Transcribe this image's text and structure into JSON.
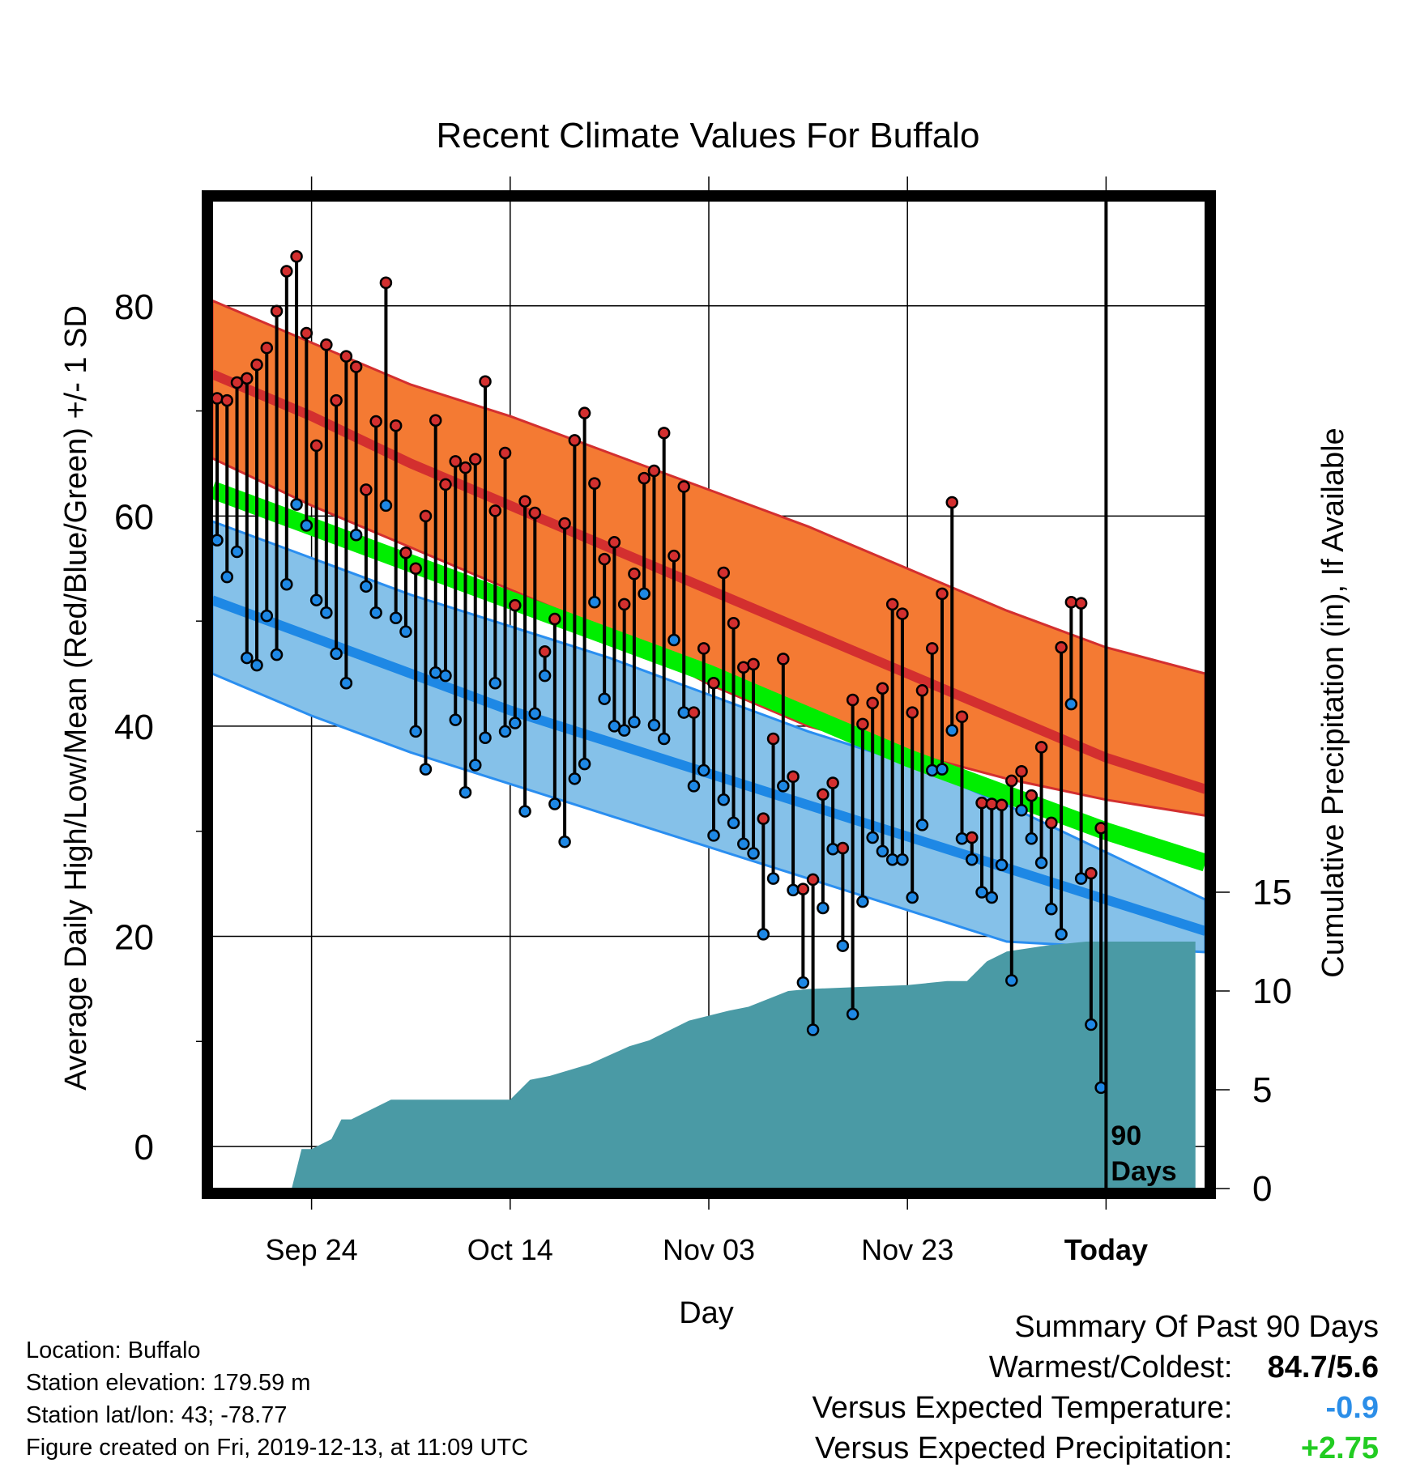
{
  "chart_data": {
    "type": "line",
    "title": "Recent Climate Values For Buffalo",
    "xlabel": "Day",
    "ylabel": "Average Daily High/Low/Mean (Red/Blue/Green) +/- 1 SD",
    "y2label": "Cumulative Precipitation (in), If Available",
    "x_tick_labels": [
      "Sep 24",
      "Oct 14",
      "Nov 03",
      "Nov 23",
      "Today"
    ],
    "x_tick_days": [
      10,
      30,
      50,
      70,
      90
    ],
    "xlim": [
      0,
      100
    ],
    "ylim": [
      -4,
      90
    ],
    "y_ticks": [
      0,
      20,
      40,
      60,
      80
    ],
    "y2lim": [
      0,
      50
    ],
    "y2_ticks": [
      0,
      5,
      10,
      15
    ],
    "today_marker": {
      "day": 90,
      "label": "90 Days"
    },
    "normals": {
      "days": [
        0,
        10,
        20,
        30,
        40,
        50,
        60,
        70,
        80,
        90,
        100
      ],
      "high_mean": [
        73.5,
        69.5,
        65.0,
        61.0,
        57.0,
        53.0,
        49.0,
        45.0,
        41.0,
        37.0,
        34.0
      ],
      "high_sd_upper": [
        80.5,
        76.5,
        72.5,
        69.5,
        66.0,
        62.5,
        59.0,
        55.0,
        51.0,
        47.5,
        45.0
      ],
      "high_sd_lower": [
        65.5,
        61.0,
        57.0,
        53.0,
        49.0,
        44.0,
        40.0,
        37.5,
        35.0,
        33.0,
        31.5
      ],
      "mean": [
        62.5,
        59.0,
        55.5,
        52.0,
        48.5,
        45.0,
        41.0,
        37.0,
        33.5,
        30.0,
        27.0
      ],
      "low_mean": [
        52.0,
        48.5,
        45.0,
        41.5,
        38.5,
        35.5,
        32.5,
        29.5,
        26.5,
        23.5,
        20.5
      ],
      "low_sd_upper": [
        59.5,
        56.0,
        52.5,
        49.5,
        46.5,
        43.0,
        39.5,
        36.5,
        32.5,
        28.0,
        23.5
      ],
      "low_sd_lower": [
        45.0,
        41.0,
        37.5,
        34.5,
        31.5,
        28.5,
        25.5,
        22.5,
        19.5,
        19.0,
        18.5
      ]
    },
    "series": [
      {
        "name": "High",
        "color": "#d32f2f",
        "x": [
          0,
          1,
          2,
          3,
          4,
          5,
          6,
          7,
          8,
          9,
          10,
          11,
          12,
          13,
          14,
          15,
          16,
          17,
          18,
          19,
          20,
          21,
          22,
          23,
          24,
          25,
          26,
          27,
          28,
          29,
          30,
          31,
          32,
          33,
          34,
          35,
          36,
          37,
          38,
          39,
          40,
          41,
          42,
          43,
          44,
          45,
          46,
          47,
          48,
          49,
          50,
          51,
          52,
          53,
          54,
          55,
          56,
          57,
          58,
          59,
          60,
          61,
          62,
          63,
          64,
          65,
          66,
          67,
          68,
          69,
          70,
          71,
          72,
          73,
          74,
          75,
          76,
          77,
          78,
          79,
          80,
          81,
          82,
          83,
          84,
          85,
          86,
          87,
          88,
          89
        ],
        "values": [
          71.2,
          71.0,
          72.7,
          73.1,
          74.4,
          76.0,
          79.5,
          83.3,
          84.7,
          77.4,
          66.7,
          76.3,
          71.0,
          75.2,
          74.2,
          62.5,
          69.0,
          82.2,
          68.6,
          56.5,
          55.0,
          60.0,
          69.1,
          63.0,
          65.2,
          64.6,
          65.4,
          72.8,
          60.5,
          66.0,
          51.5,
          61.4,
          60.3,
          47.1,
          50.2,
          59.3,
          67.2,
          69.8,
          63.1,
          55.9,
          57.5,
          51.6,
          54.5,
          63.6,
          64.3,
          67.9,
          56.2,
          62.8,
          41.3,
          47.4,
          44.1,
          54.6,
          49.8,
          45.6,
          45.9,
          31.2,
          38.8,
          46.4,
          35.2,
          24.5,
          25.4,
          33.5,
          34.6,
          28.4,
          42.5,
          40.2,
          42.2,
          43.6,
          51.6,
          50.7,
          41.3,
          43.4,
          47.4,
          52.6,
          61.3,
          40.9,
          29.4,
          32.7,
          32.6,
          32.5,
          34.8,
          35.7,
          33.4,
          38.0,
          30.8,
          47.5,
          51.8,
          51.7,
          26.0,
          30.3
        ]
      },
      {
        "name": "Low",
        "color": "#1e88e5",
        "x": [
          0,
          1,
          2,
          3,
          4,
          5,
          6,
          7,
          8,
          9,
          10,
          11,
          12,
          13,
          14,
          15,
          16,
          17,
          18,
          19,
          20,
          21,
          22,
          23,
          24,
          25,
          26,
          27,
          28,
          29,
          30,
          31,
          32,
          33,
          34,
          35,
          36,
          37,
          38,
          39,
          40,
          41,
          42,
          43,
          44,
          45,
          46,
          47,
          48,
          49,
          50,
          51,
          52,
          53,
          54,
          55,
          56,
          57,
          58,
          59,
          60,
          61,
          62,
          63,
          64,
          65,
          66,
          67,
          68,
          69,
          70,
          71,
          72,
          73,
          74,
          75,
          76,
          77,
          78,
          79,
          80,
          81,
          82,
          83,
          84,
          85,
          86,
          87,
          88,
          89
        ],
        "values": [
          57.7,
          54.2,
          56.6,
          46.5,
          45.8,
          50.5,
          46.8,
          53.5,
          61.1,
          59.1,
          52.0,
          50.8,
          46.9,
          44.1,
          58.2,
          53.3,
          50.8,
          61.0,
          50.3,
          49.0,
          39.5,
          35.9,
          45.1,
          44.8,
          40.6,
          33.7,
          36.3,
          38.9,
          44.1,
          39.5,
          40.3,
          31.9,
          41.2,
          44.8,
          32.6,
          29.0,
          35.0,
          36.4,
          51.8,
          42.6,
          40.0,
          39.6,
          40.4,
          52.6,
          40.1,
          38.8,
          48.2,
          41.3,
          34.3,
          35.8,
          29.6,
          33.0,
          30.8,
          28.8,
          27.9,
          20.2,
          25.5,
          34.3,
          24.4,
          15.6,
          11.1,
          22.7,
          28.3,
          19.1,
          12.6,
          23.3,
          29.4,
          28.1,
          27.3,
          27.3,
          23.7,
          30.6,
          35.8,
          35.9,
          39.6,
          29.3,
          27.3,
          24.2,
          23.7,
          26.8,
          15.8,
          32.0,
          29.3,
          27.0,
          22.6,
          20.2,
          42.1,
          25.5,
          11.6,
          5.6
        ]
      },
      {
        "name": "Precipitation",
        "color": "#4a9aa5",
        "x": [
          0,
          8,
          9,
          10,
          12,
          13,
          14,
          16,
          18,
          20,
          24,
          30,
          32,
          34,
          38,
          42,
          44,
          48,
          52,
          54,
          58,
          60,
          65,
          70,
          74,
          76,
          78,
          80,
          84,
          88,
          99
        ],
        "values": [
          0,
          0,
          2.0,
          2.0,
          2.5,
          3.5,
          3.5,
          4.0,
          4.5,
          4.5,
          4.5,
          4.5,
          5.5,
          5.7,
          6.3,
          7.2,
          7.5,
          8.5,
          9.0,
          9.2,
          10.0,
          10.1,
          10.2,
          10.3,
          10.5,
          10.5,
          11.5,
          12.0,
          12.3,
          12.5,
          12.5
        ]
      }
    ]
  },
  "info": {
    "location": "Location: Buffalo",
    "elevation": "Station elevation: 179.59 m",
    "latlon": "Station lat/lon: 43; -78.77",
    "created": "Figure created on Fri, 2019-12-13, at 11:09 UTC"
  },
  "summary": {
    "title": "Summary Of Past 90 Days",
    "warmest_label": "Warmest/Coldest:",
    "warmest_value": "84.7/5.6",
    "temp_label": "Versus Expected Temperature:",
    "temp_value": "-0.9",
    "temp_color": "#2b8ee8",
    "precip_label": "Versus Expected Precipitation:",
    "precip_value": "+2.75",
    "precip_color": "#22cc22"
  },
  "colors": {
    "high_band": "#f47a33",
    "high_line": "#d32f2f",
    "mean_band": "#00ee00",
    "low_band": "#85c1e9",
    "low_line": "#1e88e5",
    "low_edge": "#2a8ef0",
    "overlap_band": "#8e1a1a",
    "precip_fill": "#4a9aa5",
    "frame": "#000000"
  }
}
